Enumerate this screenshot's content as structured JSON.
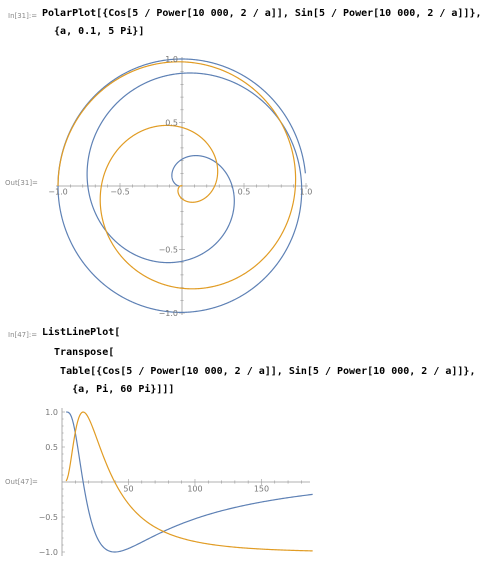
{
  "cell1": {
    "in_label": "In[31]:=",
    "out_label": "Out[31]=",
    "code": [
      "PolarPlot[{Cos[5 / Power[10 000, 2 / a]], Sin[5 / Power[10 000, 2 / a]]},",
      "  {a, 0.1, 5 Pi}]"
    ]
  },
  "cell2": {
    "in_label": "In[47]:=",
    "out_label": "Out[47]=",
    "code": [
      "ListLinePlot[",
      "  Transpose[",
      "   Table[{Cos[5 / Power[10 000, 2 / a]], Sin[5 / Power[10 000, 2 / a]]},",
      "     {a, Pi, 60 Pi}]]]"
    ]
  },
  "colors": {
    "series1": "#5e81b5",
    "series2": "#e19c24",
    "axis": "#999999",
    "label": "#8a8a8a"
  },
  "chart_data": [
    {
      "type": "line",
      "plot": "polar",
      "series": [
        {
          "expr": "Cos[5 / Power[10000, 2/a]]",
          "color": "#5e81b5"
        },
        {
          "expr": "Sin[5 / Power[10000, 2/a]]",
          "color": "#e19c24"
        }
      ],
      "a_range": [
        0.1,
        15.708
      ],
      "xlim": [
        -1.0,
        1.0
      ],
      "ylim": [
        -1.0,
        1.0
      ],
      "x_ticks": [
        -1.0,
        -0.5,
        0.5,
        1.0
      ],
      "x_tick_labels": [
        "−1.0",
        "−0.5",
        "0.5",
        "1.0"
      ],
      "y_ticks": [
        -1.0,
        -0.5,
        0.5,
        1.0
      ],
      "y_tick_labels": [
        "−1.0",
        "−0.5",
        "0.5",
        "1.0"
      ]
    },
    {
      "type": "line",
      "plot": "list",
      "series": [
        {
          "expr": "Cos[5 / Power[10000, 2/a]]",
          "color": "#5e81b5"
        },
        {
          "expr": "Sin[5 / Power[10000, 2/a]]",
          "color": "#e19c24"
        }
      ],
      "a_range": [
        3.1416,
        188.5
      ],
      "xlim": [
        0,
        185
      ],
      "ylim": [
        -1.0,
        1.0
      ],
      "x_ticks": [
        50,
        100,
        150
      ],
      "x_tick_labels": [
        "50",
        "100",
        "150"
      ],
      "y_ticks": [
        -1.0,
        -0.5,
        0.5,
        1.0
      ],
      "y_tick_labels": [
        "−1.0",
        "−0.5",
        "0.5",
        "1.0"
      ]
    }
  ]
}
